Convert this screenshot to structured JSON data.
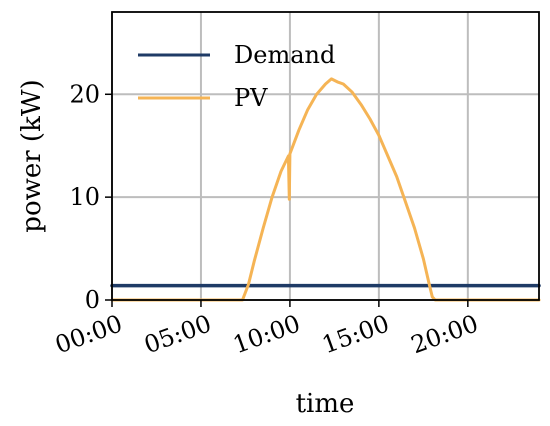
{
  "chart_data": {
    "type": "line",
    "title": "",
    "xlabel": "time",
    "ylabel": "power (kW)",
    "xlim": [
      "00:00",
      "24:00"
    ],
    "ylim": [
      0,
      28
    ],
    "x_ticks": [
      "00:00",
      "05:00",
      "10:00",
      "15:00",
      "20:00"
    ],
    "y_ticks": [
      0,
      10,
      20
    ],
    "grid": true,
    "legend": "top-left",
    "series": [
      {
        "name": "Demand",
        "color": "#1f3b66",
        "x": [
          "00:00",
          "24:00"
        ],
        "y": [
          1.4,
          1.4
        ]
      },
      {
        "name": "PV",
        "color": "#f5b455",
        "x": [
          "00:00",
          "07:20",
          "07:40",
          "08:00",
          "08:30",
          "09:00",
          "09:30",
          "09:55",
          "09:58",
          "10:00",
          "10:30",
          "11:00",
          "11:30",
          "12:00",
          "12:20",
          "12:40",
          "13:00",
          "13:30",
          "14:00",
          "14:30",
          "15:00",
          "15:30",
          "16:00",
          "16:30",
          "17:00",
          "17:30",
          "17:50",
          "18:00",
          "18:10",
          "24:00"
        ],
        "y": [
          0,
          0,
          1.5,
          3.8,
          7.0,
          10.0,
          12.5,
          14.0,
          9.8,
          14.2,
          16.5,
          18.5,
          20.0,
          21.0,
          21.5,
          21.2,
          21.0,
          20.2,
          19.0,
          17.6,
          16.0,
          14.0,
          12.0,
          9.5,
          7.0,
          4.0,
          1.5,
          0.3,
          0,
          0
        ]
      }
    ]
  }
}
